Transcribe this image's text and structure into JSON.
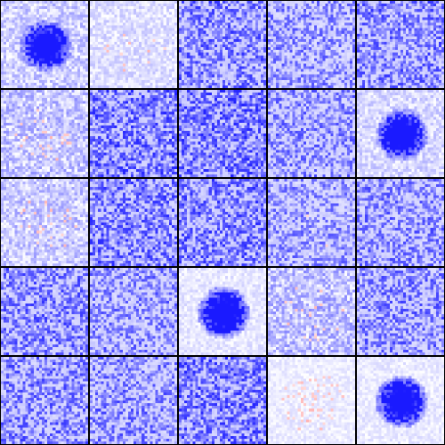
{
  "grid": {
    "rows": 5,
    "cols": 5,
    "cells_per_side": 32,
    "border_color": "#000000",
    "colors": {
      "low": "#1a1aff",
      "mid": "#ffffff",
      "high": "#ff9a9a"
    }
  },
  "tiles": [
    {
      "row": 0,
      "col": 0,
      "pattern": "blob",
      "density": 0.7
    },
    {
      "row": 0,
      "col": 1,
      "pattern": "faint",
      "density": 0.2
    },
    {
      "row": 0,
      "col": 2,
      "pattern": "noise",
      "density": 0.62
    },
    {
      "row": 0,
      "col": 3,
      "pattern": "noise",
      "density": 0.48
    },
    {
      "row": 0,
      "col": 4,
      "pattern": "noise",
      "density": 0.6
    },
    {
      "row": 1,
      "col": 0,
      "pattern": "faint",
      "density": 0.35
    },
    {
      "row": 1,
      "col": 1,
      "pattern": "noise",
      "density": 0.68
    },
    {
      "row": 1,
      "col": 2,
      "pattern": "noise",
      "density": 0.7
    },
    {
      "row": 1,
      "col": 3,
      "pattern": "noise",
      "density": 0.52
    },
    {
      "row": 1,
      "col": 4,
      "pattern": "blob",
      "density": 0.55
    },
    {
      "row": 2,
      "col": 0,
      "pattern": "faint",
      "density": 0.32
    },
    {
      "row": 2,
      "col": 1,
      "pattern": "noise",
      "density": 0.66
    },
    {
      "row": 2,
      "col": 2,
      "pattern": "noise",
      "density": 0.66
    },
    {
      "row": 2,
      "col": 3,
      "pattern": "noise",
      "density": 0.46
    },
    {
      "row": 2,
      "col": 4,
      "pattern": "noise",
      "density": 0.54
    },
    {
      "row": 3,
      "col": 0,
      "pattern": "noise",
      "density": 0.6
    },
    {
      "row": 3,
      "col": 1,
      "pattern": "noise",
      "density": 0.52
    },
    {
      "row": 3,
      "col": 2,
      "pattern": "blob",
      "density": 0.35
    },
    {
      "row": 3,
      "col": 3,
      "pattern": "faint",
      "density": 0.38
    },
    {
      "row": 3,
      "col": 4,
      "pattern": "noise",
      "density": 0.56
    },
    {
      "row": 4,
      "col": 0,
      "pattern": "noise",
      "density": 0.58
    },
    {
      "row": 4,
      "col": 1,
      "pattern": "noise",
      "density": 0.55
    },
    {
      "row": 4,
      "col": 2,
      "pattern": "noise",
      "density": 0.68
    },
    {
      "row": 4,
      "col": 3,
      "pattern": "faint",
      "density": 0.12
    },
    {
      "row": 4,
      "col": 4,
      "pattern": "blob",
      "density": 0.3
    }
  ]
}
